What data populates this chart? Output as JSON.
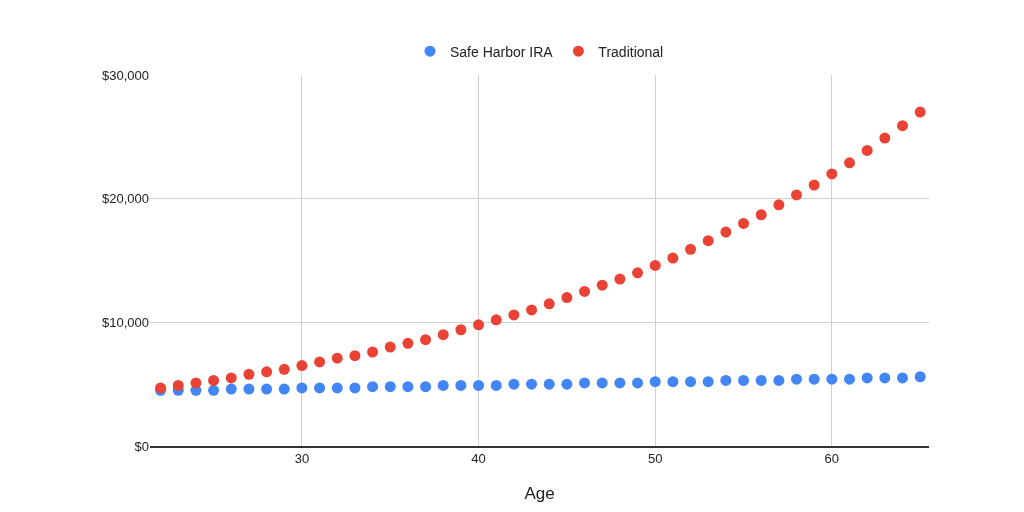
{
  "chart_data": {
    "type": "scatter",
    "xlabel": "Age",
    "x": [
      22,
      23,
      24,
      25,
      26,
      27,
      28,
      29,
      30,
      31,
      32,
      33,
      34,
      35,
      36,
      37,
      38,
      39,
      40,
      41,
      42,
      43,
      44,
      45,
      46,
      47,
      48,
      49,
      50,
      51,
      52,
      53,
      54,
      55,
      56,
      57,
      58,
      59,
      60,
      61,
      62,
      63,
      64,
      65
    ],
    "series": [
      {
        "name": "Safe Harbor IRA",
        "color": "#4285f4",
        "values": [
          4500,
          4500,
          4500,
          4500,
          4600,
          4600,
          4600,
          4600,
          4700,
          4700,
          4700,
          4700,
          4800,
          4800,
          4800,
          4800,
          4900,
          4900,
          4900,
          4900,
          5000,
          5000,
          5000,
          5000,
          5100,
          5100,
          5100,
          5100,
          5200,
          5200,
          5200,
          5200,
          5300,
          5300,
          5300,
          5300,
          5400,
          5400,
          5400,
          5400,
          5500,
          5500,
          5500,
          5600
        ]
      },
      {
        "name": "Traditional",
        "color": "#ea4335",
        "values": [
          4700,
          4900,
          5100,
          5300,
          5500,
          5800,
          6000,
          6200,
          6500,
          6800,
          7100,
          7300,
          7600,
          8000,
          8300,
          8600,
          9000,
          9400,
          9800,
          10200,
          10600,
          11000,
          11500,
          12000,
          12500,
          13000,
          13500,
          14000,
          14600,
          15200,
          15900,
          16600,
          17300,
          18000,
          18700,
          19500,
          20300,
          21100,
          22000,
          22900,
          23900,
          24900,
          25900,
          27000
        ]
      }
    ],
    "xlim": [
      21.4,
      65.5
    ],
    "xticks": [
      30,
      40,
      50,
      60
    ],
    "ylim": [
      0,
      30000
    ],
    "yticks": [
      {
        "value": 0,
        "label": "$0"
      },
      {
        "value": 10000,
        "label": "$10,000"
      },
      {
        "value": 20000,
        "label": "$20,000"
      },
      {
        "value": 30000,
        "label": "$30,000"
      }
    ],
    "grid": true,
    "legend": "top",
    "marker": "circle"
  }
}
